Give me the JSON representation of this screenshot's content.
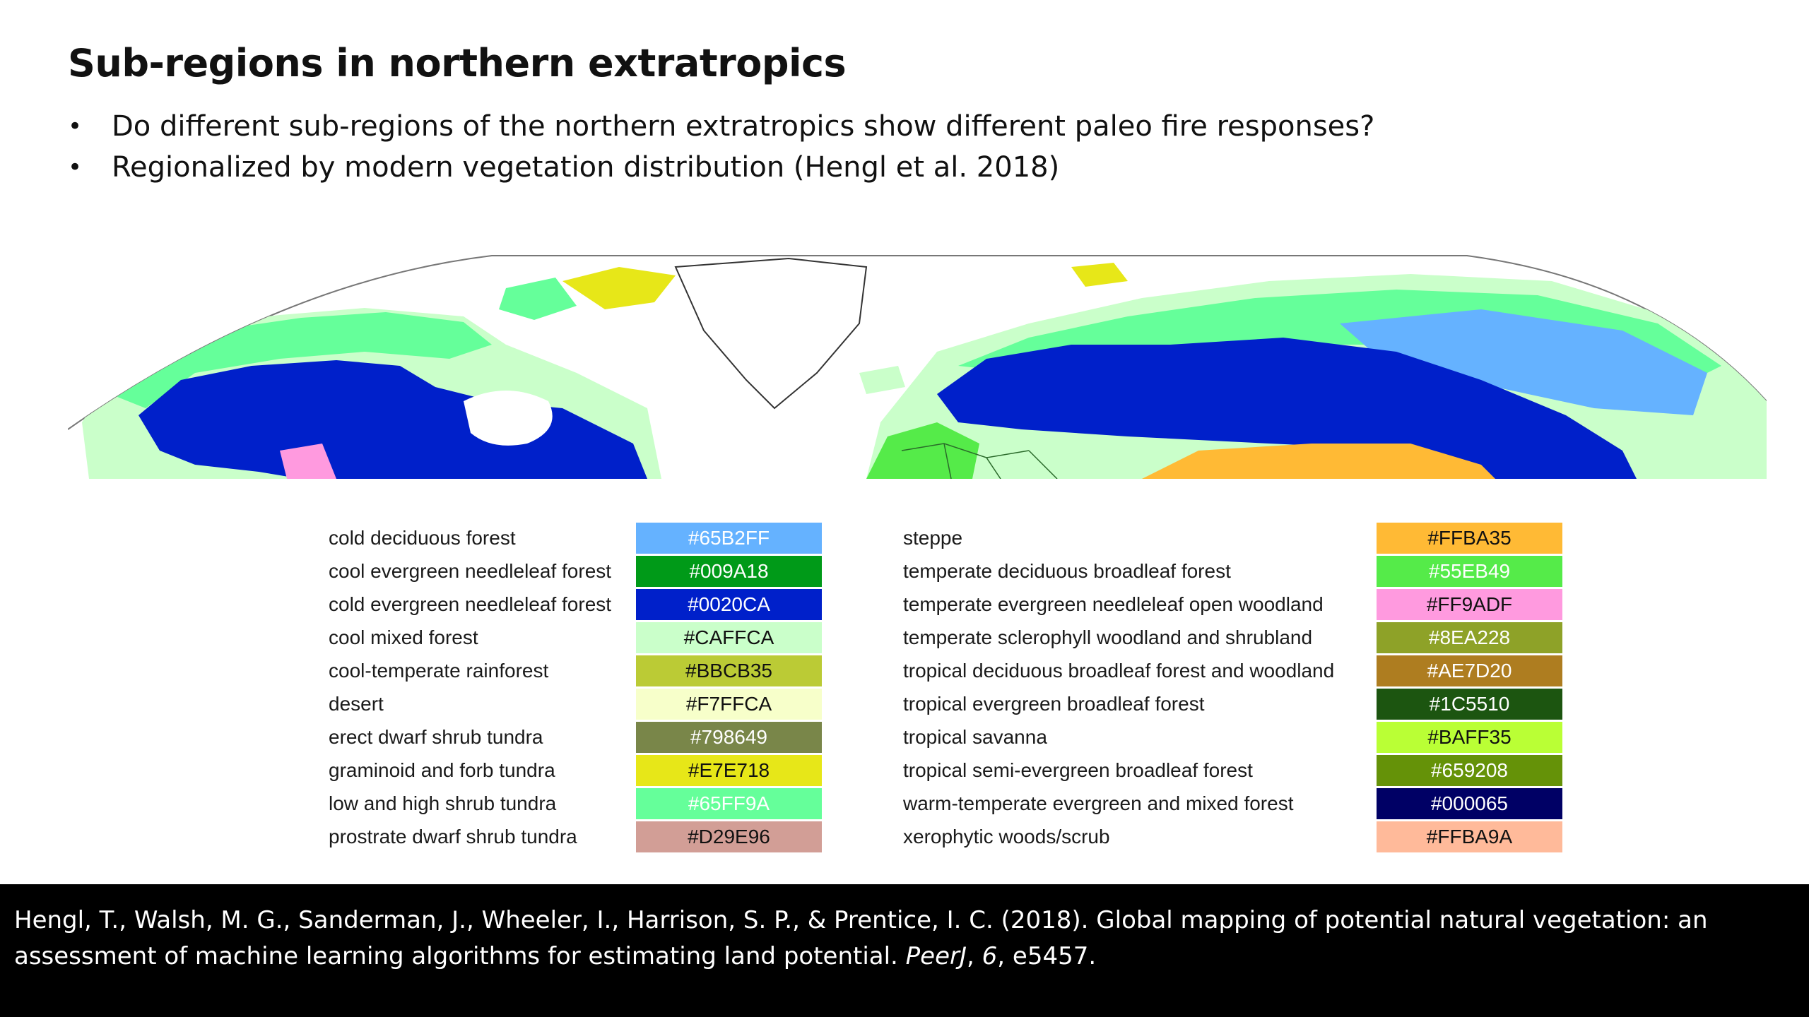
{
  "slide": {
    "title": "Sub-regions in northern extratropics",
    "bullets": [
      "Do different sub-regions of the northern extratropics show different paleo fire responses?",
      "Regionalized by modern vegetation distribution (Hengl et al. 2018)"
    ],
    "bullet_glyph": "•"
  },
  "legend": {
    "left": [
      {
        "label": "cold deciduous forest",
        "hex": "#65B2FF",
        "color": "#65B2FF",
        "text_color": "#ffffff"
      },
      {
        "label": "cool evergreen needleleaf forest",
        "hex": "#009A18",
        "color": "#009A18",
        "text_color": "#ffffff"
      },
      {
        "label": "cold evergreen needleleaf forest",
        "hex": "#0020CA",
        "color": "#0020CA",
        "text_color": "#ffffff"
      },
      {
        "label": "cool mixed forest",
        "hex": "#CAFFCA",
        "color": "#CAFFCA",
        "text_color": "#111111"
      },
      {
        "label": "cool-temperate rainforest",
        "hex": "#BBCB35",
        "color": "#BBCB35",
        "text_color": "#111111"
      },
      {
        "label": "desert",
        "hex": "#F7FFCA",
        "color": "#F7FFCA",
        "text_color": "#111111"
      },
      {
        "label": "erect dwarf shrub tundra",
        "hex": "#798649",
        "color": "#798649",
        "text_color": "#ffffff"
      },
      {
        "label": "graminoid and forb tundra",
        "hex": "#E7E718",
        "color": "#E7E718",
        "text_color": "#111111"
      },
      {
        "label": "low and high shrub tundra",
        "hex": "#65FF9A",
        "color": "#65FF9A",
        "text_color": "#ffffff"
      },
      {
        "label": "prostrate dwarf shrub tundra",
        "hex": "#D29E96",
        "color": "#D29E96",
        "text_color": "#111111"
      }
    ],
    "right": [
      {
        "label": "steppe",
        "hex": "#FFBA35",
        "color": "#FFBA35",
        "text_color": "#111111"
      },
      {
        "label": "temperate deciduous broadleaf forest",
        "hex": "#55EB49",
        "color": "#55EB49",
        "text_color": "#ffffff"
      },
      {
        "label": "temperate evergreen needleleaf open woodland",
        "hex": "#FF9ADF",
        "color": "#FF9ADF",
        "text_color": "#111111"
      },
      {
        "label": "temperate sclerophyll woodland and shrubland",
        "hex": "#8EA228",
        "color": "#8EA228",
        "text_color": "#ffffff"
      },
      {
        "label": "tropical deciduous broadleaf forest and woodland",
        "hex": "#AE7D20",
        "color": "#AE7D20",
        "text_color": "#ffffff"
      },
      {
        "label": "tropical evergreen broadleaf forest",
        "hex": "#1C5510",
        "color": "#1C5510",
        "text_color": "#ffffff"
      },
      {
        "label": "tropical savanna",
        "hex": "#BAFF35",
        "color": "#BAFF35",
        "text_color": "#111111"
      },
      {
        "label": "tropical semi-evergreen broadleaf forest",
        "hex": "#659208",
        "color": "#659208",
        "text_color": "#ffffff"
      },
      {
        "label": "warm-temperate evergreen and mixed forest",
        "hex": "#000065",
        "color": "#000065",
        "text_color": "#ffffff"
      },
      {
        "label": "xerophytic woods/scrub",
        "hex": "#FFBA9A",
        "color": "#FFBA9A",
        "text_color": "#111111"
      }
    ]
  },
  "citation": {
    "line1": "Hengl, T., Walsh, M. G., Sanderman, J., Wheeler, I., Harrison, S. P., & Prentice, I. C. (2018). Global mapping of potential natural vegetation: an",
    "line2_prefix": "assessment of machine learning algorithms for estimating land potential. ",
    "journal": "PeerJ",
    "sep1": ", ",
    "volume": "6",
    "line2_suffix": ", e5457."
  },
  "map_colors": {
    "cool_mixed": "#CAFFCA",
    "low_high_shrub_tundra": "#65FF9A",
    "cold_evergreen": "#0020CA",
    "cold_deciduous": "#65B2FF",
    "steppe": "#FFBA35",
    "graminoid_tundra": "#E7E718",
    "temperate_needleleaf": "#FF9ADF",
    "temperate_deciduous": "#55EB49"
  }
}
